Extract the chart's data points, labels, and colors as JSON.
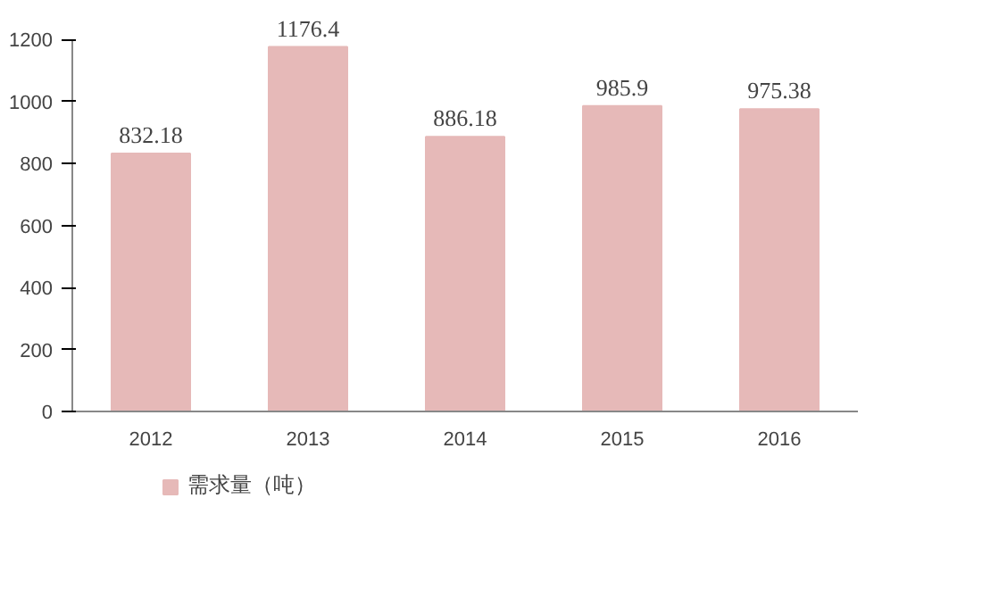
{
  "chart_data": {
    "type": "bar",
    "categories": [
      "2012",
      "2013",
      "2014",
      "2015",
      "2016"
    ],
    "series": [
      {
        "name": "需求量（吨）",
        "color": "#e6b9b8",
        "values": [
          832.18,
          1176.4,
          886.18,
          985.9,
          975.38
        ]
      }
    ],
    "ylim": [
      0,
      1200
    ],
    "yticks": [
      0,
      200,
      400,
      600,
      800,
      1000,
      1200
    ],
    "data_labels": true,
    "grid": false,
    "legend": "bottom left"
  }
}
